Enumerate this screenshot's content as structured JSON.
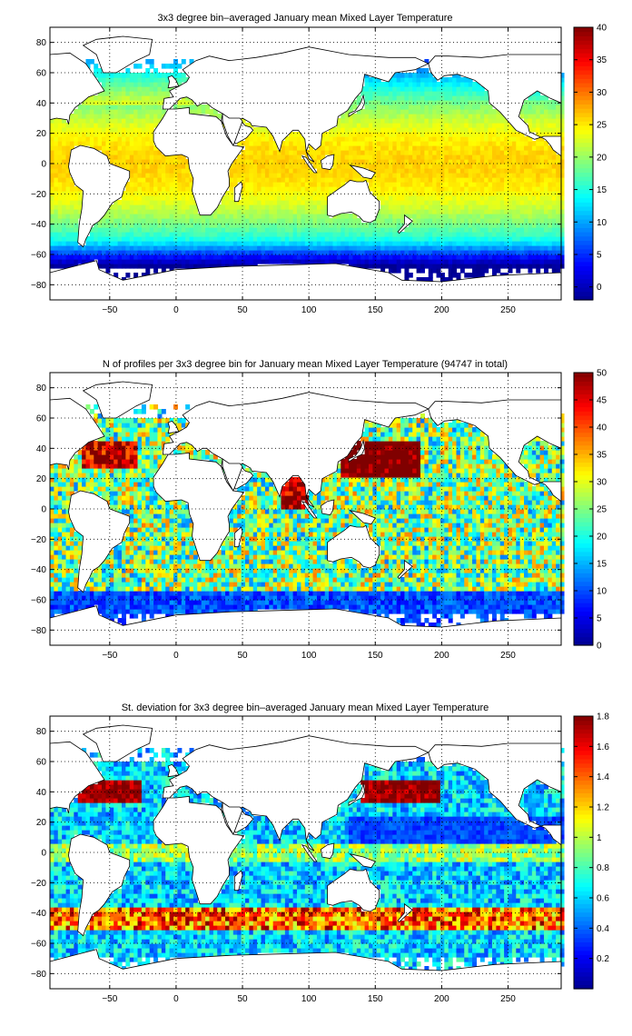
{
  "colors": {
    "jet": [
      "#00008f",
      "#0000ff",
      "#00ffff",
      "#ffff00",
      "#ff0000",
      "#800000"
    ],
    "land": "#ffffff",
    "coast": "#000000",
    "grid": "#000000"
  },
  "chart_data": [
    {
      "type": "heatmap",
      "title": "3x3 degree bin–averaged January mean Mixed Layer Temperature",
      "quantity": "temperature",
      "xlim": [
        -95,
        290
      ],
      "ylim": [
        -90,
        90
      ],
      "xticks": [
        -50,
        0,
        50,
        100,
        150,
        200,
        250
      ],
      "yticks": [
        -80,
        -60,
        -40,
        -20,
        0,
        20,
        40,
        60,
        80
      ],
      "xtick_labels": [
        "−50",
        "0",
        "50",
        "100",
        "150",
        "200",
        "250"
      ],
      "ytick_labels": [
        "−80",
        "−60",
        "−40",
        "−20",
        "0",
        "20",
        "40",
        "60",
        "80"
      ],
      "clim": [
        -2,
        40
      ],
      "colorbar_ticks": [
        0,
        5,
        10,
        15,
        20,
        25,
        30,
        35,
        40
      ],
      "colorbar_tick_labels": [
        "0",
        "5",
        "10",
        "15",
        "20",
        "25",
        "30",
        "35",
        "40"
      ],
      "grid": true,
      "bin_size_deg": 3
    },
    {
      "type": "heatmap",
      "title": "N of profiles per 3x3 degree bin for January mean Mixed Layer Temperature  (94747 in total)",
      "quantity": "count",
      "xlim": [
        -95,
        290
      ],
      "ylim": [
        -90,
        90
      ],
      "xticks": [
        -50,
        0,
        50,
        100,
        150,
        200,
        250
      ],
      "yticks": [
        -80,
        -60,
        -40,
        -20,
        0,
        20,
        40,
        60,
        80
      ],
      "xtick_labels": [
        "−50",
        "0",
        "50",
        "100",
        "150",
        "200",
        "250"
      ],
      "ytick_labels": [
        "−80",
        "−60",
        "−40",
        "−20",
        "0",
        "20",
        "40",
        "60",
        "80"
      ],
      "clim": [
        0,
        50
      ],
      "colorbar_ticks": [
        0,
        5,
        10,
        15,
        20,
        25,
        30,
        35,
        40,
        45,
        50
      ],
      "colorbar_tick_labels": [
        "0",
        "5",
        "10",
        "15",
        "20",
        "25",
        "30",
        "35",
        "40",
        "45",
        "50"
      ],
      "grid": true,
      "bin_size_deg": 3,
      "total_profiles": 94747
    },
    {
      "type": "heatmap",
      "title": "St. deviation for 3x3 degree bin–averaged January mean Mixed Layer Temperature",
      "quantity": "stdev",
      "xlim": [
        -95,
        290
      ],
      "ylim": [
        -90,
        90
      ],
      "xticks": [
        -50,
        0,
        50,
        100,
        150,
        200,
        250
      ],
      "yticks": [
        -80,
        -60,
        -40,
        -20,
        0,
        20,
        40,
        60,
        80
      ],
      "xtick_labels": [
        "−50",
        "0",
        "50",
        "100",
        "150",
        "200",
        "250"
      ],
      "ytick_labels": [
        "−80",
        "−60",
        "−40",
        "−20",
        "0",
        "20",
        "40",
        "60",
        "80"
      ],
      "clim": [
        0,
        1.8
      ],
      "colorbar_ticks": [
        0.2,
        0.4,
        0.6,
        0.8,
        1,
        1.2,
        1.4,
        1.6,
        1.8
      ],
      "colorbar_tick_labels": [
        "0.2",
        "0.4",
        "0.6",
        "0.8",
        "1",
        "1.2",
        "1.4",
        "1.6",
        "1.8"
      ],
      "grid": true,
      "bin_size_deg": 3
    }
  ]
}
